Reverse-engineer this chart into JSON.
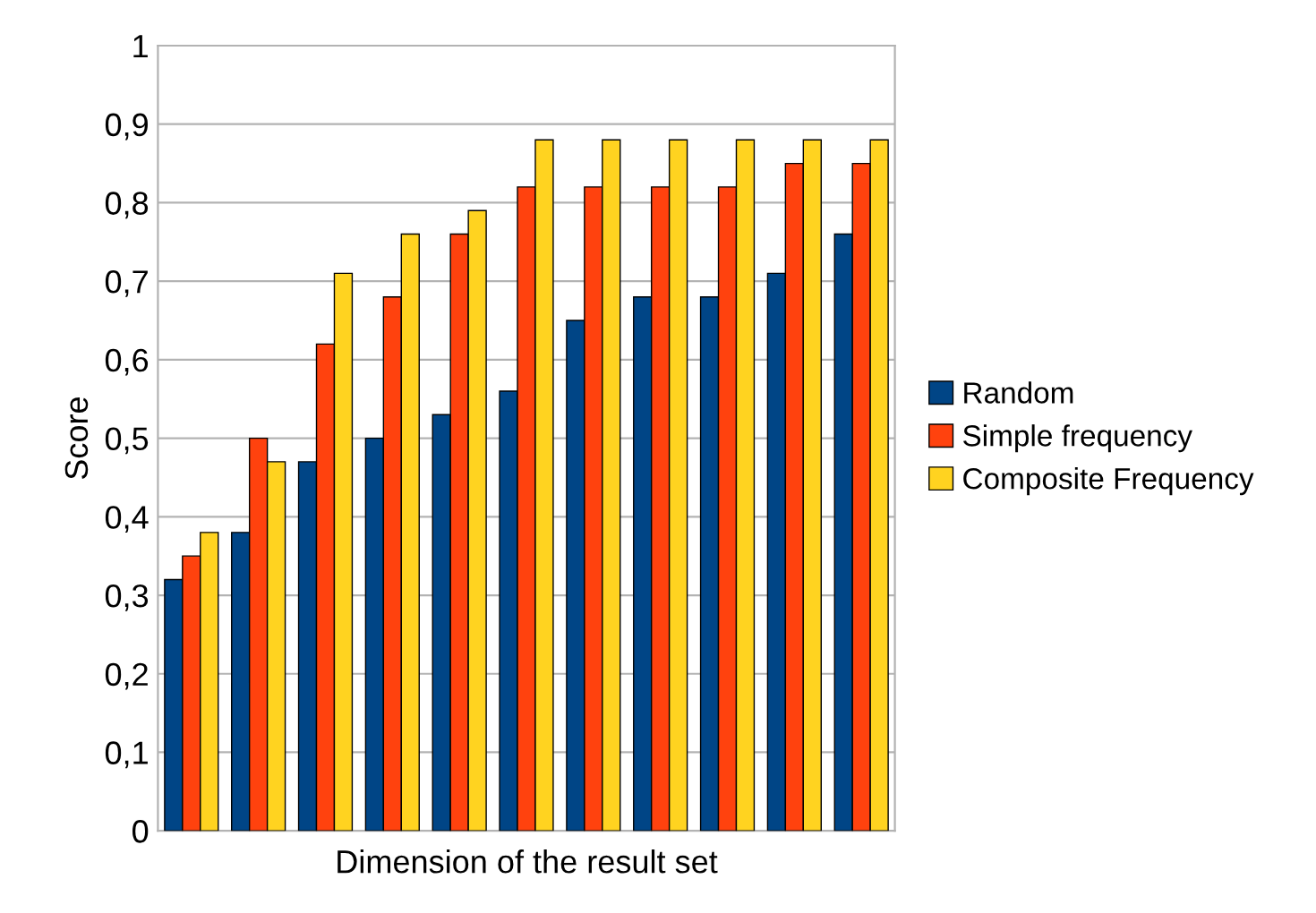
{
  "chart_data": {
    "type": "bar",
    "xlabel": "Dimension of the result set",
    "ylabel": "Score",
    "categories": [
      null,
      null,
      null,
      null,
      null,
      null,
      null,
      null,
      null,
      null,
      null
    ],
    "series": [
      {
        "name": "Random",
        "color": "#004586",
        "values": [
          0.32,
          0.38,
          0.47,
          0.5,
          0.53,
          0.56,
          0.65,
          0.68,
          0.68,
          0.71,
          0.76
        ]
      },
      {
        "name": "Simple frequency",
        "color": "#ff420e",
        "values": [
          0.35,
          0.5,
          0.62,
          0.68,
          0.76,
          0.82,
          0.82,
          0.82,
          0.82,
          0.85,
          0.85
        ]
      },
      {
        "name": "Composite Frequency",
        "color": "#ffd320",
        "values": [
          0.38,
          0.47,
          0.71,
          0.76,
          0.79,
          0.88,
          0.88,
          0.88,
          0.88,
          0.88,
          0.88
        ]
      }
    ],
    "ylim": [
      0,
      1
    ],
    "yticks": [
      0,
      {
        "value": 0.1,
        "label": "0,1"
      },
      {
        "value": 0.2,
        "label": "0,2"
      },
      {
        "value": 0.3,
        "label": "0,3"
      },
      {
        "value": 0.4,
        "label": "0,4"
      },
      {
        "value": 0.5,
        "label": "0,5"
      },
      {
        "value": 0.6,
        "label": "0,6"
      },
      {
        "value": 0.7,
        "label": "0,7"
      },
      {
        "value": 0.8,
        "label": "0,8"
      },
      {
        "value": 0.9,
        "label": "0,9"
      },
      1
    ],
    "grid": "y",
    "legend": "right"
  }
}
